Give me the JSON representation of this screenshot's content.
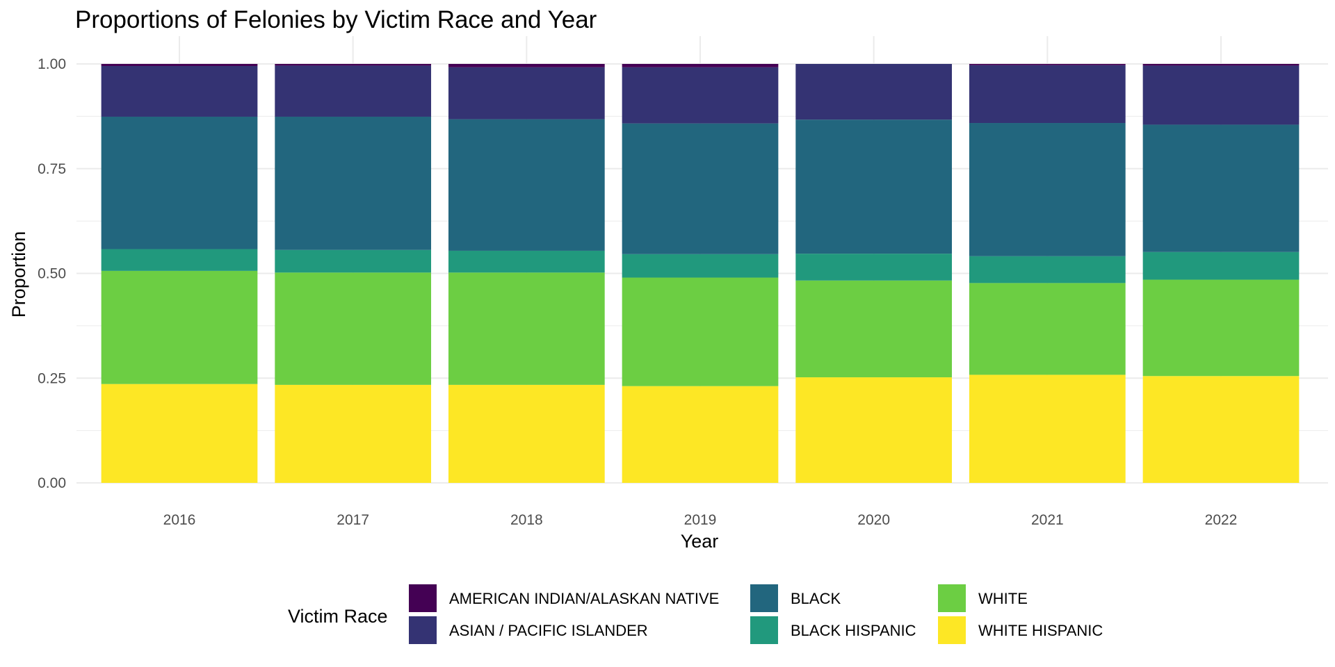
{
  "chart_data": {
    "type": "bar",
    "stacked": true,
    "title": "Proportions of Felonies by Victim Race and Year",
    "xlabel": "Year",
    "ylabel": "Proportion",
    "categories": [
      "2016",
      "2017",
      "2018",
      "2019",
      "2020",
      "2021",
      "2022"
    ],
    "ylim": [
      0,
      1
    ],
    "yticks": [
      "0.00",
      "0.25",
      "0.50",
      "0.75",
      "1.00"
    ],
    "grid": true,
    "legend": {
      "title": "Victim Race",
      "position": "bottom"
    },
    "series": [
      {
        "name": "WHITE HISPANIC",
        "color": "#FDE725",
        "values": [
          0.236,
          0.234,
          0.234,
          0.231,
          0.252,
          0.258,
          0.255
        ]
      },
      {
        "name": "WHITE",
        "color": "#6CCE43",
        "values": [
          0.27,
          0.268,
          0.268,
          0.259,
          0.231,
          0.219,
          0.23
        ]
      },
      {
        "name": "BLACK HISPANIC",
        "color": "#21997D",
        "values": [
          0.052,
          0.054,
          0.052,
          0.056,
          0.064,
          0.064,
          0.066
        ]
      },
      {
        "name": "BLACK",
        "color": "#22667E",
        "values": [
          0.316,
          0.318,
          0.314,
          0.312,
          0.32,
          0.318,
          0.304
        ]
      },
      {
        "name": "ASIAN / PACIFIC ISLANDER",
        "color": "#343373",
        "values": [
          0.121,
          0.122,
          0.124,
          0.134,
          0.133,
          0.138,
          0.141
        ]
      },
      {
        "name": "AMERICAN INDIAN/ALASKAN NATIVE",
        "color": "#440154",
        "values": [
          0.005,
          0.004,
          0.008,
          0.008,
          0.0,
          0.003,
          0.004
        ]
      }
    ],
    "legend_order": [
      "AMERICAN INDIAN/ALASKAN NATIVE",
      "ASIAN / PACIFIC ISLANDER",
      "BLACK",
      "BLACK HISPANIC",
      "WHITE",
      "WHITE HISPANIC"
    ]
  }
}
